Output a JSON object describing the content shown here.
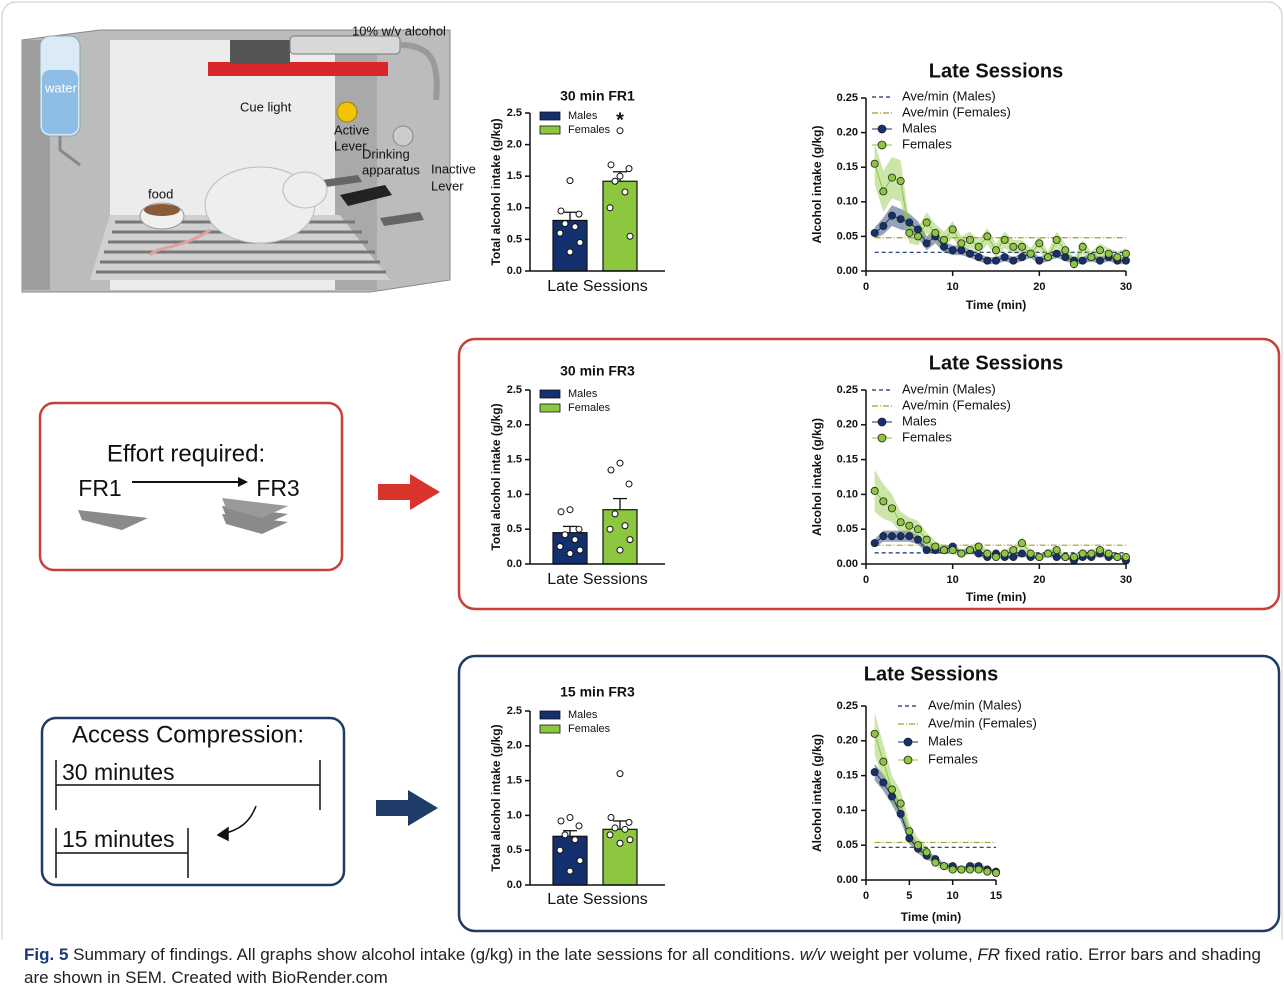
{
  "illustration": {
    "alcohol": "10% w/v alcohol",
    "water": "water",
    "cue_light": "Cue light",
    "active_lever": [
      "Active",
      "Lever"
    ],
    "drinking_apparatus": [
      "Drinking",
      "apparatus"
    ],
    "inactive_lever": [
      "Inactive",
      "Lever"
    ],
    "food": "food"
  },
  "effort_panel": {
    "title": "Effort required:",
    "from": "FR1",
    "to": "FR3"
  },
  "compression_panel": {
    "title": "Access Compression:",
    "long": "30 minutes",
    "short": "15 minutes"
  },
  "chart_data": [
    {
      "type": "bar",
      "title": "30 min FR1",
      "ylabel": "Total alcohol intake (g/kg)",
      "xlabel": "Late Sessions",
      "annotation": "*",
      "ylim": [
        0,
        2.5
      ],
      "yticks": [
        {
          "value": 0,
          "label": "0.0"
        },
        0.5,
        {
          "value": 1,
          "label": "1.0"
        },
        1.5,
        {
          "value": 2,
          "label": "2.0"
        },
        2.5
      ],
      "series": [
        {
          "name": "Males",
          "color": "#14306e",
          "values": [
            0.8
          ],
          "errors": [
            0.13
          ],
          "points": [
            1.43,
            0.95,
            0.9,
            0.75,
            0.7,
            0.6,
            0.45,
            0.3
          ]
        },
        {
          "name": "Females",
          "color": "#8dc63f",
          "values": [
            1.42
          ],
          "errors": [
            0.15
          ],
          "points": [
            2.22,
            1.68,
            1.62,
            1.42,
            1.25,
            1.0,
            0.55,
            1.5
          ]
        }
      ]
    },
    {
      "type": "line",
      "title": "Late Sessions",
      "xlabel": "Time (min)",
      "ylabel": "Alcohol intake (g/kg)",
      "x": [
        1,
        2,
        3,
        4,
        5,
        6,
        7,
        8,
        9,
        10,
        11,
        12,
        13,
        14,
        15,
        16,
        17,
        18,
        19,
        20,
        21,
        22,
        23,
        24,
        25,
        26,
        27,
        28,
        29,
        30
      ],
      "xlim": [
        0,
        30
      ],
      "xticks": [
        0,
        10,
        20,
        30
      ],
      "ylim": [
        0,
        0.25
      ],
      "yticks": [
        {
          "value": 0,
          "label": "0.00"
        },
        0.05,
        {
          "value": 0.1,
          "label": "0.10"
        },
        0.15,
        {
          "value": 0.2,
          "label": "0.20"
        },
        0.25
      ],
      "reference_lines": [
        {
          "name": "Ave/min (Males)",
          "value": 0.027,
          "color": "#14306e",
          "linestyle": "dashed"
        },
        {
          "name": "Ave/min (Females)",
          "value": 0.048,
          "color": "#9aa32a",
          "linestyle": "dashdot"
        }
      ],
      "series": [
        {
          "name": "Males",
          "color": "#14306e",
          "values": [
            0.055,
            0.065,
            0.08,
            0.075,
            0.07,
            0.06,
            0.04,
            0.05,
            0.035,
            0.03,
            0.03,
            0.025,
            0.02,
            0.015,
            0.015,
            0.02,
            0.015,
            0.02,
            0.025,
            0.015,
            0.02,
            0.025,
            0.02,
            0.015,
            0.015,
            0.02,
            0.015,
            0.02,
            0.015,
            0.015
          ],
          "errors": [
            0.008,
            0.012,
            0.015,
            0.015,
            0.013,
            0.012,
            0.01,
            0.01,
            0.008,
            0.007,
            0.007,
            0.006,
            0.006,
            0.005,
            0.005,
            0.006,
            0.005,
            0.006,
            0.006,
            0.005,
            0.006,
            0.006,
            0.006,
            0.005,
            0.005,
            0.006,
            0.005,
            0.006,
            0.005,
            0.005
          ]
        },
        {
          "name": "Females",
          "color": "#8dc63f",
          "values": [
            0.155,
            0.115,
            0.135,
            0.13,
            0.055,
            0.05,
            0.07,
            0.055,
            0.045,
            0.06,
            0.04,
            0.045,
            0.035,
            0.05,
            0.03,
            0.045,
            0.035,
            0.035,
            0.025,
            0.04,
            0.02,
            0.045,
            0.03,
            0.01,
            0.035,
            0.02,
            0.03,
            0.025,
            0.02,
            0.025
          ],
          "errors": [
            0.03,
            0.03,
            0.03,
            0.03,
            0.015,
            0.013,
            0.015,
            0.013,
            0.012,
            0.012,
            0.01,
            0.012,
            0.01,
            0.012,
            0.01,
            0.012,
            0.01,
            0.01,
            0.008,
            0.01,
            0.008,
            0.012,
            0.01,
            0.008,
            0.01,
            0.008,
            0.01,
            0.008,
            0.008,
            0.008
          ]
        }
      ]
    },
    {
      "type": "bar",
      "title": "30 min FR3",
      "ylabel": "Total alcohol intake (g/kg)",
      "xlabel": "Late Sessions",
      "ylim": [
        0,
        2.5
      ],
      "yticks": [
        {
          "value": 0,
          "label": "0.0"
        },
        0.5,
        {
          "value": 1,
          "label": "1.0"
        },
        1.5,
        {
          "value": 2,
          "label": "2.0"
        },
        2.5
      ],
      "series": [
        {
          "name": "Males",
          "color": "#14306e",
          "values": [
            0.45
          ],
          "errors": [
            0.09
          ],
          "points": [
            0.78,
            0.75,
            0.5,
            0.42,
            0.35,
            0.25,
            0.2,
            0.15
          ]
        },
        {
          "name": "Females",
          "color": "#8dc63f",
          "values": [
            0.78
          ],
          "errors": [
            0.16
          ],
          "points": [
            1.45,
            1.35,
            1.15,
            0.72,
            0.55,
            0.5,
            0.35,
            0.2
          ]
        }
      ]
    },
    {
      "type": "line",
      "title": "Late Sessions",
      "xlabel": "Time (min)",
      "ylabel": "Alcohol intake (g/kg)",
      "x": [
        1,
        2,
        3,
        4,
        5,
        6,
        7,
        8,
        9,
        10,
        11,
        12,
        13,
        14,
        15,
        16,
        17,
        18,
        19,
        20,
        21,
        22,
        23,
        24,
        25,
        26,
        27,
        28,
        29,
        30
      ],
      "xlim": [
        0,
        30
      ],
      "xticks": [
        0,
        10,
        20,
        30
      ],
      "ylim": [
        0,
        0.25
      ],
      "yticks": [
        {
          "value": 0,
          "label": "0.00"
        },
        0.05,
        {
          "value": 0.1,
          "label": "0.10"
        },
        0.15,
        {
          "value": 0.2,
          "label": "0.20"
        },
        0.25
      ],
      "reference_lines": [
        {
          "name": "Ave/min (Males)",
          "value": 0.016,
          "color": "#14306e",
          "linestyle": "dashed"
        },
        {
          "name": "Ave/min (Females)",
          "value": 0.027,
          "color": "#9aa32a",
          "linestyle": "dashdot"
        }
      ],
      "series": [
        {
          "name": "Males",
          "color": "#14306e",
          "values": [
            0.03,
            0.04,
            0.04,
            0.04,
            0.04,
            0.035,
            0.02,
            0.02,
            0.02,
            0.025,
            0.015,
            0.02,
            0.015,
            0.01,
            0.015,
            0.01,
            0.01,
            0.015,
            0.01,
            0.01,
            0.015,
            0.01,
            0.01,
            0.005,
            0.01,
            0.01,
            0.015,
            0.01,
            0.01,
            0.005
          ],
          "errors": [
            0.006,
            0.008,
            0.008,
            0.008,
            0.008,
            0.007,
            0.005,
            0.005,
            0.005,
            0.005,
            0.004,
            0.005,
            0.004,
            0.003,
            0.004,
            0.003,
            0.003,
            0.004,
            0.003,
            0.003,
            0.004,
            0.003,
            0.003,
            0.002,
            0.003,
            0.003,
            0.004,
            0.003,
            0.003,
            0.002
          ]
        },
        {
          "name": "Females",
          "color": "#8dc63f",
          "values": [
            0.105,
            0.09,
            0.08,
            0.06,
            0.055,
            0.05,
            0.035,
            0.025,
            0.02,
            0.02,
            0.015,
            0.02,
            0.025,
            0.015,
            0.01,
            0.015,
            0.02,
            0.03,
            0.015,
            0.01,
            0.015,
            0.02,
            0.01,
            0.01,
            0.015,
            0.015,
            0.02,
            0.015,
            0.01,
            0.01
          ],
          "errors": [
            0.03,
            0.025,
            0.02,
            0.015,
            0.012,
            0.012,
            0.01,
            0.008,
            0.006,
            0.006,
            0.005,
            0.006,
            0.007,
            0.005,
            0.004,
            0.005,
            0.006,
            0.008,
            0.005,
            0.004,
            0.005,
            0.006,
            0.004,
            0.004,
            0.005,
            0.005,
            0.006,
            0.005,
            0.004,
            0.004
          ]
        }
      ]
    },
    {
      "type": "bar",
      "title": "15 min FR3",
      "ylabel": "Total alcohol intake (g/kg)",
      "xlabel": "Late Sessions",
      "ylim": [
        0,
        2.5
      ],
      "yticks": [
        {
          "value": 0,
          "label": "0.0"
        },
        0.5,
        {
          "value": 1,
          "label": "1.0"
        },
        1.5,
        {
          "value": 2,
          "label": "2.0"
        },
        2.5
      ],
      "series": [
        {
          "name": "Males",
          "color": "#14306e",
          "values": [
            0.7
          ],
          "errors": [
            0.08
          ],
          "points": [
            0.97,
            0.92,
            0.85,
            0.72,
            0.65,
            0.5,
            0.35,
            0.2
          ]
        },
        {
          "name": "Females",
          "color": "#8dc63f",
          "values": [
            0.8
          ],
          "errors": [
            0.12
          ],
          "points": [
            1.6,
            0.97,
            0.9,
            0.82,
            0.8,
            0.72,
            0.65,
            0.6
          ]
        }
      ]
    },
    {
      "type": "line",
      "title": "Late Sessions",
      "xlabel": "Time (min)",
      "ylabel": "Alcohol intake (g/kg)",
      "x": [
        1,
        2,
        3,
        4,
        5,
        6,
        7,
        8,
        9,
        10,
        11,
        12,
        13,
        14,
        15
      ],
      "xlim": [
        0,
        15
      ],
      "xticks": [
        0,
        5,
        10,
        15
      ],
      "ylim": [
        0,
        0.25
      ],
      "yticks": [
        {
          "value": 0,
          "label": "0.00"
        },
        0.05,
        {
          "value": 0.1,
          "label": "0.10"
        },
        0.15,
        {
          "value": 0.2,
          "label": "0.20"
        },
        0.25
      ],
      "reference_lines": [
        {
          "name": "Ave/min (Males)",
          "value": 0.047,
          "color": "#14306e",
          "linestyle": "dashed"
        },
        {
          "name": "Ave/min (Females)",
          "value": 0.054,
          "color": "#9aa32a",
          "linestyle": "dashdot"
        }
      ],
      "series": [
        {
          "name": "Males",
          "color": "#14306e",
          "values": [
            0.155,
            0.14,
            0.12,
            0.095,
            0.06,
            0.045,
            0.035,
            0.03,
            0.02,
            0.02,
            0.015,
            0.02,
            0.02,
            0.015,
            0.012
          ],
          "errors": [
            0.012,
            0.012,
            0.012,
            0.01,
            0.008,
            0.007,
            0.006,
            0.005,
            0.004,
            0.004,
            0.003,
            0.004,
            0.004,
            0.003,
            0.003
          ]
        },
        {
          "name": "Females",
          "color": "#8dc63f",
          "values": [
            0.21,
            0.17,
            0.13,
            0.11,
            0.07,
            0.05,
            0.04,
            0.025,
            0.02,
            0.015,
            0.015,
            0.015,
            0.015,
            0.012,
            0.01
          ],
          "errors": [
            0.03,
            0.025,
            0.02,
            0.018,
            0.012,
            0.01,
            0.008,
            0.006,
            0.005,
            0.004,
            0.004,
            0.004,
            0.004,
            0.003,
            0.003
          ]
        }
      ]
    }
  ],
  "caption": {
    "label": "Fig. 5",
    "parts": [
      " Summary of findings. All graphs show alcohol intake (g/kg) in the late sessions for all conditions. ",
      "w/v",
      " weight per volume, ",
      "FR",
      " fixed ratio. Error bars and shading are shown in SEM. Created with BioRender.com"
    ]
  }
}
